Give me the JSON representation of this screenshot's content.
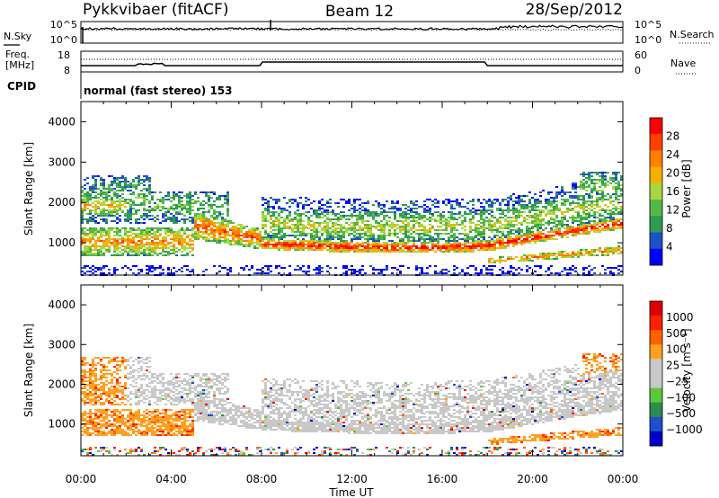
{
  "header": {
    "station": "Pykkvibaer (fitACF)",
    "beam": "Beam 12",
    "date": "28/Sep/2012"
  },
  "sky_panel": {
    "left_label": "N.Sky",
    "right_label": "N.Search",
    "left_ticks": [
      "10^5",
      "10^0"
    ],
    "right_ticks": [
      "10^5",
      "10^0"
    ]
  },
  "freq_panel": {
    "left_label_line1": "Freq.",
    "left_label_line2": "[MHz]",
    "right_label": "Nave",
    "left_ticks": [
      "18",
      "8"
    ],
    "right_ticks": [
      "60",
      "0"
    ]
  },
  "cpid_panel": {
    "label": "CPID",
    "text": "normal (fast stereo) 153"
  },
  "colors": {
    "power_scale": [
      "#0000ff",
      "#1e50c8",
      "#2f9a52",
      "#54b848",
      "#a8d840",
      "#f2b000",
      "#ff8000",
      "#ff4000",
      "#ff0000"
    ],
    "velocity_scale": [
      "#0000c8",
      "#2050c8",
      "#2e8a4e",
      "#5cc83a",
      "#c8c8c8",
      "#c8c8c8",
      "#ffa020",
      "#ff6000",
      "#ff2000",
      "#e00000"
    ],
    "ground_scatter": "#c8c8c8"
  },
  "chart_data": [
    {
      "type": "heatmap",
      "name": "power",
      "ylabel": "Slant Range [km]",
      "colorbar_label": "Power [dB]",
      "colorbar_ticks": [
        "28",
        "24",
        "20",
        "16",
        "12",
        "8",
        "4"
      ],
      "y_ticks": [
        "4000",
        "3000",
        "2000",
        "1000"
      ],
      "ylim": [
        200,
        4500
      ],
      "xlim_hours": [
        0,
        24
      ]
    },
    {
      "type": "heatmap",
      "name": "velocity",
      "ylabel": "Slant Range [km]",
      "colorbar_label": "Velocity [m s⁻¹]",
      "colorbar_ticks": [
        "1000",
        "500",
        "100",
        "25",
        "−25",
        "−100",
        "−500",
        "−1000"
      ],
      "y_ticks": [
        "4000",
        "3000",
        "2000",
        "1000"
      ],
      "ylim": [
        200,
        4500
      ],
      "xlim_hours": [
        0,
        24
      ],
      "x_ticks": [
        "00:00",
        "04:00",
        "08:00",
        "12:00",
        "16:00",
        "20:00",
        "00:00"
      ],
      "xlabel": "Time UT"
    }
  ]
}
